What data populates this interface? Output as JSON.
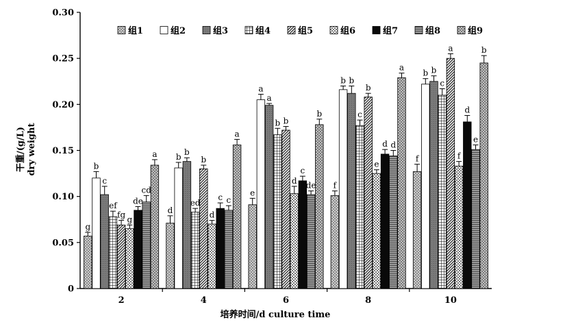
{
  "chart_data": {
    "type": "bar",
    "ylabel_cn": "干重/(g/L)",
    "ylabel_en": "dry weight",
    "xlabel": "培养时间/d culture time",
    "ylim": [
      0,
      0.3
    ],
    "yticks": [
      "0",
      "0.05",
      "0.10",
      "0.15",
      "0.20",
      "0.25",
      "0.30"
    ],
    "categories": [
      "2",
      "4",
      "6",
      "8",
      "10"
    ],
    "legend_position": "top",
    "series": [
      {
        "name": "组1",
        "pattern": "gray-dots",
        "values": [
          0.057,
          0.071,
          0.091,
          0.101,
          0.127
        ],
        "errors": [
          0.004,
          0.008,
          0.007,
          0.005,
          0.008
        ],
        "letters": [
          "g",
          "d",
          "e",
          "f",
          "f"
        ]
      },
      {
        "name": "组2",
        "pattern": "white",
        "values": [
          0.12,
          0.131,
          0.205,
          0.216,
          0.222
        ],
        "errors": [
          0.007,
          0.006,
          0.006,
          0.004,
          0.006
        ],
        "letters": [
          "b",
          "b",
          "a",
          "b",
          "b"
        ]
      },
      {
        "name": "组3",
        "pattern": "gray-solid",
        "values": [
          0.102,
          0.138,
          0.199,
          0.212,
          0.225
        ],
        "errors": [
          0.009,
          0.004,
          0.002,
          0.008,
          0.006
        ],
        "letters": [
          "c",
          "b",
          "a",
          "b",
          "b"
        ]
      },
      {
        "name": "组4",
        "pattern": "grid",
        "values": [
          0.078,
          0.083,
          0.167,
          0.177,
          0.21
        ],
        "errors": [
          0.006,
          0.004,
          0.007,
          0.006,
          0.007
        ],
        "letters": [
          "ef",
          "ed",
          "b",
          "c",
          "c"
        ]
      },
      {
        "name": "组5",
        "pattern": "diagonal",
        "values": [
          0.069,
          0.13,
          0.172,
          0.208,
          0.25
        ],
        "errors": [
          0.005,
          0.004,
          0.004,
          0.004,
          0.005
        ],
        "letters": [
          "fg",
          "b",
          "b",
          "b",
          "a"
        ]
      },
      {
        "name": "组6",
        "pattern": "checker",
        "values": [
          0.065,
          0.07,
          0.103,
          0.125,
          0.133
        ],
        "errors": [
          0.004,
          0.004,
          0.008,
          0.004,
          0.005
        ],
        "letters": [
          "g",
          "d",
          "d",
          "e",
          "f"
        ]
      },
      {
        "name": "组7",
        "pattern": "black",
        "values": [
          0.085,
          0.087,
          0.117,
          0.146,
          0.181
        ],
        "errors": [
          0.004,
          0.006,
          0.005,
          0.005,
          0.007
        ],
        "letters": [
          "de",
          "c",
          "c",
          "d",
          "d"
        ]
      },
      {
        "name": "组8",
        "pattern": "hlines",
        "values": [
          0.094,
          0.085,
          0.102,
          0.144,
          0.151
        ],
        "errors": [
          0.007,
          0.005,
          0.004,
          0.006,
          0.005
        ],
        "letters": [
          "cd",
          "c",
          "de",
          "d",
          "e"
        ]
      },
      {
        "name": "组9",
        "pattern": "weave",
        "values": [
          0.134,
          0.156,
          0.178,
          0.229,
          0.245
        ],
        "errors": [
          0.006,
          0.006,
          0.006,
          0.005,
          0.008
        ],
        "letters": [
          "a",
          "a",
          "b",
          "a",
          "b"
        ]
      }
    ]
  }
}
